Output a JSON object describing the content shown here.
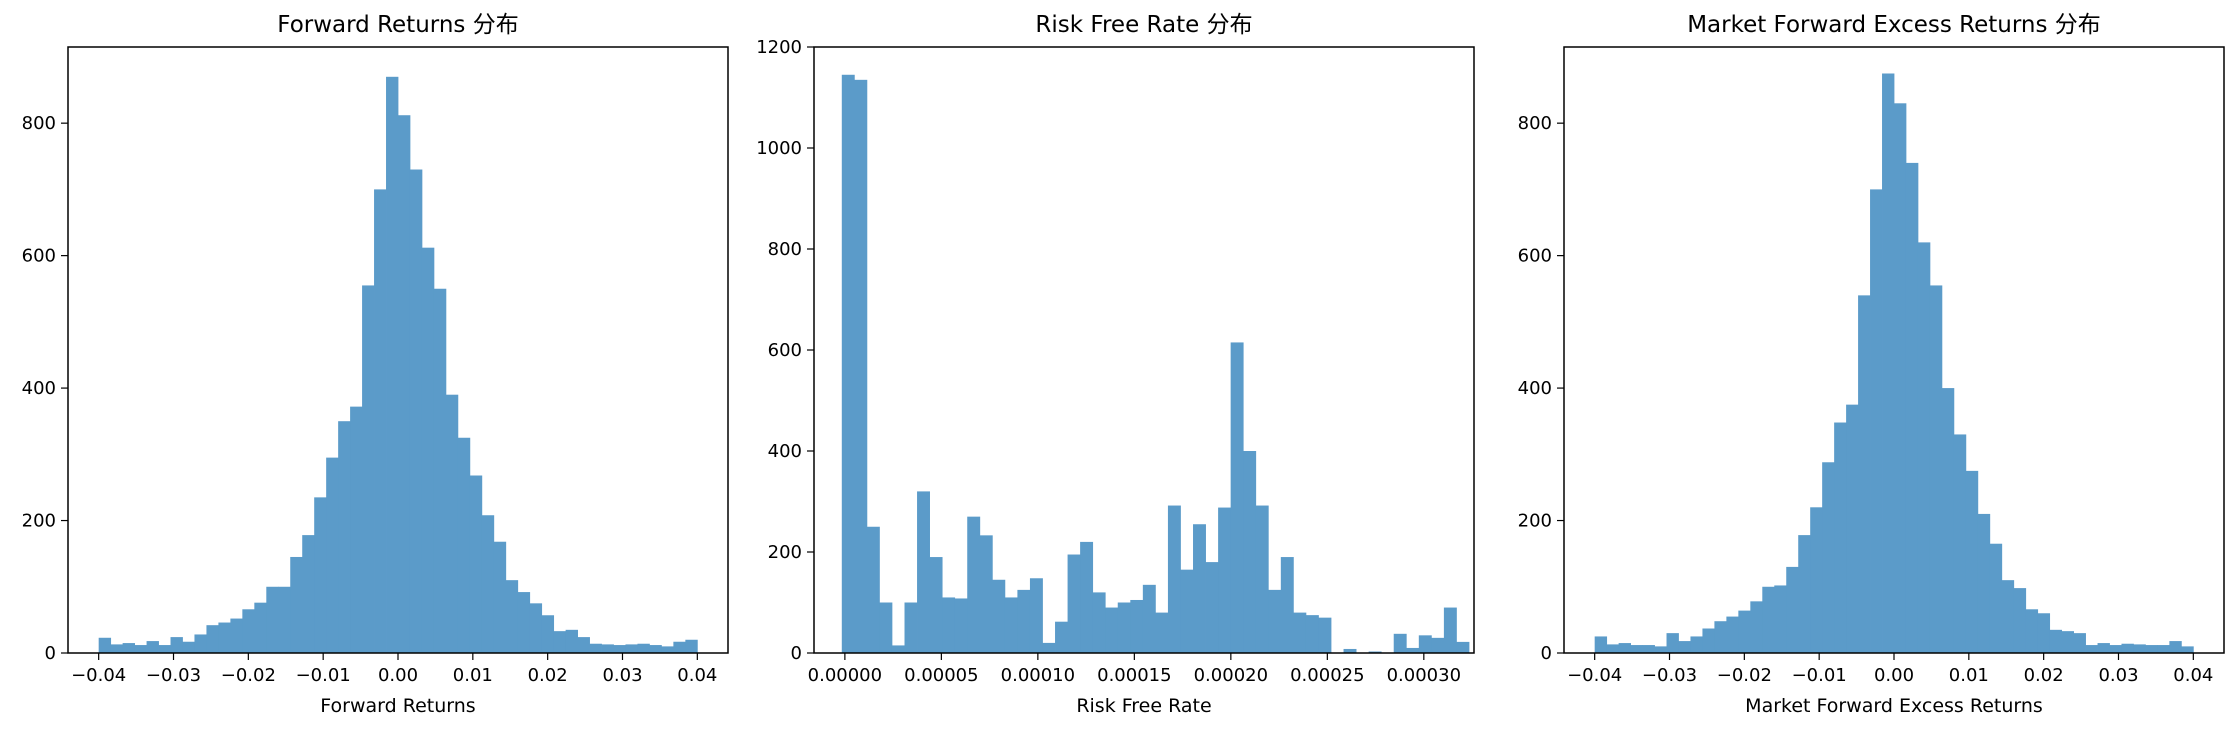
{
  "chart_data": [
    {
      "type": "bar",
      "title": "Forward Returns 分布",
      "xlabel": "Forward Returns",
      "ylabel": "",
      "xlim": [
        -0.0441,
        0.0441
      ],
      "ylim": [
        0,
        915
      ],
      "xticks": [
        -0.04,
        -0.03,
        -0.02,
        -0.01,
        0.0,
        0.01,
        0.02,
        0.03,
        0.04
      ],
      "xtick_labels": [
        "−0.04",
        "−0.03",
        "−0.02",
        "−0.01",
        "0.00",
        "0.01",
        "0.02",
        "0.03",
        "0.04"
      ],
      "yticks": [
        0,
        200,
        400,
        600,
        800
      ],
      "ytick_labels": [
        "0",
        "200",
        "400",
        "600",
        "800"
      ],
      "bin_start": -0.04,
      "bin_width": 0.0016,
      "values": [
        23,
        13,
        15,
        12,
        18,
        12,
        24,
        17,
        28,
        42,
        46,
        52,
        66,
        76,
        100,
        100,
        145,
        178,
        235,
        295,
        350,
        372,
        555,
        700,
        870,
        812,
        730,
        612,
        550,
        390,
        325,
        268,
        208,
        168,
        110,
        92,
        75,
        57,
        33,
        35,
        24,
        14,
        13,
        12,
        13,
        14,
        12,
        10,
        17,
        20
      ],
      "color": "#5b9bc9",
      "grid": false
    },
    {
      "type": "bar",
      "title": "Risk Free Rate 分布",
      "xlabel": "Risk Free Rate",
      "ylabel": "",
      "xlim": [
        -1.6e-05,
        0.000326
      ],
      "ylim": [
        0,
        1200
      ],
      "xticks": [
        0,
        5e-05,
        0.0001,
        0.00015,
        0.0002,
        0.00025,
        0.0003
      ],
      "xtick_labels": [
        "0.00000",
        "0.00005",
        "0.00010",
        "0.00015",
        "0.00020",
        "0.00025",
        "0.00030"
      ],
      "yticks": [
        0,
        200,
        400,
        600,
        800,
        1000,
        1200
      ],
      "ytick_labels": [
        "0",
        "200",
        "400",
        "600",
        "800",
        "1000",
        "1200"
      ],
      "bin_start": -1.6e-06,
      "bin_width": 6.5e-06,
      "values": [
        1145,
        1135,
        250,
        100,
        15,
        100,
        320,
        190,
        110,
        108,
        270,
        233,
        145,
        110,
        125,
        148,
        20,
        62,
        195,
        220,
        120,
        90,
        100,
        105,
        135,
        80,
        292,
        165,
        255,
        180,
        288,
        615,
        400,
        292,
        125,
        190,
        80,
        75,
        70,
        0,
        8,
        0,
        3,
        0,
        38,
        10,
        35,
        30,
        90,
        22
      ],
      "color": "#5b9bc9",
      "grid": false
    },
    {
      "type": "bar",
      "title": "Market Forward Excess Returns 分布",
      "xlabel": "Market Forward Excess Returns",
      "ylabel": "",
      "xlim": [
        -0.0441,
        0.0441
      ],
      "ylim": [
        0,
        915
      ],
      "xticks": [
        -0.04,
        -0.03,
        -0.02,
        -0.01,
        0.0,
        0.01,
        0.02,
        0.03,
        0.04
      ],
      "xtick_labels": [
        "−0.04",
        "−0.03",
        "−0.02",
        "−0.01",
        "0.00",
        "0.01",
        "0.02",
        "0.03",
        "0.04"
      ],
      "yticks": [
        0,
        200,
        400,
        600,
        800
      ],
      "ytick_labels": [
        "0",
        "200",
        "400",
        "600",
        "800"
      ],
      "bin_start": -0.04,
      "bin_width": 0.0016,
      "values": [
        25,
        13,
        15,
        12,
        12,
        10,
        30,
        18,
        25,
        37,
        48,
        55,
        64,
        78,
        100,
        102,
        130,
        178,
        220,
        288,
        348,
        375,
        540,
        700,
        875,
        830,
        740,
        620,
        555,
        400,
        330,
        275,
        210,
        165,
        110,
        98,
        66,
        60,
        35,
        33,
        30,
        12,
        15,
        12,
        14,
        13,
        12,
        12,
        18,
        10
      ],
      "color": "#5b9bc9",
      "grid": false
    }
  ]
}
